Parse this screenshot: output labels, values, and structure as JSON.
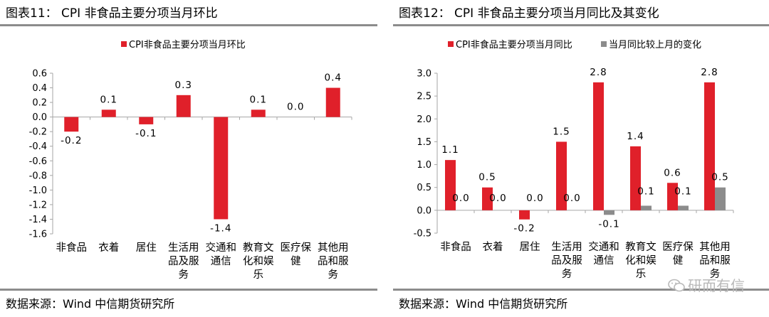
{
  "left": {
    "title": "图表11： CPI 非食品主要分项当月环比",
    "source": "数据来源：Wind 中信期货研究所"
  },
  "right": {
    "title": "图表12： CPI 非食品主要分项当月同比及其变化",
    "source": "数据来源：Wind 中信期货研究所"
  },
  "watermark": {
    "text": "研而有信",
    "icon": "wechat-icon"
  },
  "colors": {
    "red": "#e0202a",
    "gray": "#8c8c8c",
    "axis": "#a6a6a6"
  },
  "chart_data": [
    {
      "type": "bar",
      "title": "图表11： CPI 非食品主要分项当月环比",
      "categories": [
        "非食品",
        "衣着",
        "居住",
        "生活用品及服务",
        "交通和通信",
        "教育文化和娱乐",
        "医疗保健",
        "其他用品和服务"
      ],
      "category_lines": [
        [
          "非食品"
        ],
        [
          "衣着"
        ],
        [
          "居住"
        ],
        [
          "生活用",
          "品及服",
          "务"
        ],
        [
          "交通和",
          "通信"
        ],
        [
          "教育文",
          "化和娱",
          "乐"
        ],
        [
          "医疗保",
          "健"
        ],
        [
          "其他用",
          "品和服",
          "务"
        ]
      ],
      "series": [
        {
          "name": "CPI非食品主要分项当月环比",
          "color": "#e0202a",
          "values": [
            -0.2,
            0.1,
            -0.1,
            0.3,
            -1.4,
            0.1,
            0.0,
            0.4
          ],
          "labels": [
            "-0.2",
            "0.1",
            "-0.1",
            "0.3",
            "-1.4",
            "0.1",
            "0.0",
            "0.4"
          ]
        }
      ],
      "yticks": [
        0.6,
        0.4,
        0.2,
        0.0,
        -0.2,
        -0.4,
        -0.6,
        -0.8,
        -1.0,
        -1.2,
        -1.4,
        -1.6
      ],
      "ytick_labels": [
        "0.6",
        "0.4",
        "0.2",
        "0.0",
        "-0.2",
        "-0.4",
        "-0.6",
        "-0.8",
        "-1.0",
        "-1.2",
        "-1.4",
        "-1.6"
      ],
      "ylim": [
        -1.6,
        0.6
      ],
      "legend": "top-center",
      "grid": false
    },
    {
      "type": "bar",
      "title": "图表12： CPI 非食品主要分项当月同比及其变化",
      "categories": [
        "非食品",
        "衣着",
        "居住",
        "生活用品及服务",
        "交通和通信",
        "教育文化和娱乐",
        "医疗保健",
        "其他用品和服务"
      ],
      "category_lines": [
        [
          "非食品"
        ],
        [
          "衣着"
        ],
        [
          "居住"
        ],
        [
          "生活用",
          "品及服",
          "务"
        ],
        [
          "交通和",
          "通信"
        ],
        [
          "教育文",
          "化和娱",
          "乐"
        ],
        [
          "医疗保",
          "健"
        ],
        [
          "其他用",
          "品和服",
          "务"
        ]
      ],
      "series": [
        {
          "name": "CPI非食品主要分项当月同比",
          "color": "#e0202a",
          "values": [
            1.1,
            0.5,
            -0.2,
            1.5,
            2.8,
            1.4,
            0.6,
            2.8
          ],
          "labels": [
            "1.1",
            "0.5",
            "-0.2",
            "1.5",
            "2.8",
            "1.4",
            "0.6",
            "2.8"
          ]
        },
        {
          "name": "当月同比较上月的变化",
          "color": "#8c8c8c",
          "values": [
            0.0,
            0.0,
            0.0,
            0.0,
            -0.1,
            0.1,
            0.1,
            0.5
          ],
          "labels": [
            "0.0",
            "0.0",
            "0.0",
            "0.0",
            "-0.1",
            "0.1",
            "0.1",
            "0.5"
          ]
        }
      ],
      "yticks": [
        3.0,
        2.5,
        2.0,
        1.5,
        1.0,
        0.5,
        0.0,
        -0.5
      ],
      "ytick_labels": [
        "3.0",
        "2.5",
        "2.0",
        "1.5",
        "1.0",
        "0.5",
        "0.0",
        "-0.5"
      ],
      "ylim": [
        -0.5,
        3.0
      ],
      "legend": "top-center",
      "grid": false
    }
  ]
}
